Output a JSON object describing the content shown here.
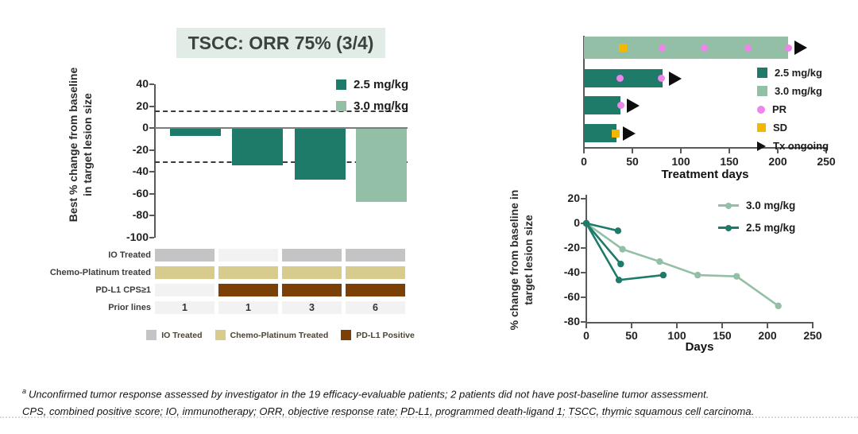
{
  "title": "TSCC: ORR 75% (3/4)",
  "colors": {
    "dark_green": "#1e7a69",
    "light_green": "#92bfa6",
    "pr_pink": "#ee85ea",
    "sd_yellow": "#f5b800",
    "black": "#111111",
    "io_gray": "#c4c4c7",
    "chemo_tan": "#d8cb8e",
    "pdl1_brown": "#7c3f05",
    "cell_empty": "#f2f2f3"
  },
  "chart_data": [
    {
      "id": "waterfall",
      "type": "bar",
      "ylabel": "Best % change from baseline in target lesion size",
      "ylim": [
        -100,
        40
      ],
      "yticks": [
        40,
        20,
        0,
        -20,
        -40,
        -60,
        -80,
        -100
      ],
      "reference_lines_pct": [
        16,
        -30
      ],
      "legend": [
        {
          "label": "2.5 mg/kg",
          "color": "dark_green"
        },
        {
          "label": "3.0 mg/kg",
          "color": "light_green"
        }
      ],
      "bars": [
        {
          "patient": 1,
          "dose": "2.5 mg/kg",
          "color": "dark_green",
          "value": -7
        },
        {
          "patient": 2,
          "dose": "2.5 mg/kg",
          "color": "dark_green",
          "value": -34
        },
        {
          "patient": 3,
          "dose": "2.5 mg/kg",
          "color": "dark_green",
          "value": -47
        },
        {
          "patient": 4,
          "dose": "3.0 mg/kg",
          "color": "light_green",
          "value": -67
        }
      ]
    },
    {
      "id": "swimmer",
      "type": "bar",
      "xlabel": "Treatment days",
      "xlim": [
        0,
        250
      ],
      "xticks": [
        0,
        50,
        100,
        150,
        200,
        250
      ],
      "bars": [
        {
          "dose": "3.0 mg/kg",
          "color": "light_green",
          "days": 211,
          "ongoing": true,
          "markers": [
            {
              "type": "SD",
              "day": 40
            },
            {
              "type": "PR",
              "day": 81
            },
            {
              "type": "PR",
              "day": 124
            },
            {
              "type": "PR",
              "day": 169
            },
            {
              "type": "PR",
              "day": 211
            }
          ]
        },
        {
          "dose": "2.5 mg/kg",
          "color": "dark_green",
          "days": 81,
          "ongoing": true,
          "markers": [
            {
              "type": "PR",
              "day": 37
            },
            {
              "type": "PR",
              "day": 80
            }
          ]
        },
        {
          "dose": "2.5 mg/kg",
          "color": "dark_green",
          "days": 38,
          "ongoing": true,
          "markers": [
            {
              "type": "PR",
              "day": 38
            }
          ]
        },
        {
          "dose": "2.5 mg/kg",
          "color": "dark_green",
          "days": 34,
          "ongoing": true,
          "markers": [
            {
              "type": "SD",
              "day": 33
            }
          ]
        }
      ],
      "legend": [
        {
          "label": "2.5 mg/kg",
          "swatch": "square",
          "color": "dark_green"
        },
        {
          "label": "3.0 mg/kg",
          "swatch": "square",
          "color": "light_green"
        },
        {
          "label": "PR",
          "swatch": "circle",
          "color": "pr_pink"
        },
        {
          "label": "SD",
          "swatch": "square_small",
          "color": "sd_yellow"
        },
        {
          "label": "Tx ongoing",
          "swatch": "triangle",
          "color": "black"
        }
      ]
    },
    {
      "id": "spider",
      "type": "line",
      "xlabel": "Days",
      "ylabel": "% change from baseline in target lesion size",
      "xlim": [
        0,
        250
      ],
      "ylim": [
        -80,
        20
      ],
      "xticks": [
        0,
        50,
        100,
        150,
        200,
        250
      ],
      "yticks": [
        20,
        0,
        -20,
        -40,
        -60,
        -80
      ],
      "series": [
        {
          "name": "3.0 mg/kg",
          "color": "light_green",
          "points": [
            [
              0,
              0
            ],
            [
              40,
              -21
            ],
            [
              81,
              -31
            ],
            [
              123,
              -42
            ],
            [
              166,
              -43
            ],
            [
              212,
              -67
            ]
          ]
        },
        {
          "name": "2.5 mg/kg",
          "color": "dark_green",
          "points": [
            [
              0,
              0
            ],
            [
              35,
              -6
            ]
          ]
        },
        {
          "name": "2.5 mg/kg",
          "color": "dark_green",
          "points": [
            [
              0,
              0
            ],
            [
              38,
              -33
            ]
          ]
        },
        {
          "name": "2.5 mg/kg",
          "color": "dark_green",
          "points": [
            [
              0,
              0
            ],
            [
              36,
              -46
            ],
            [
              85,
              -42
            ]
          ]
        }
      ],
      "legend": [
        {
          "label": "3.0 mg/kg",
          "color": "light_green"
        },
        {
          "label": "2.5 mg/kg",
          "color": "dark_green"
        }
      ]
    }
  ],
  "patient_table": {
    "rows": [
      {
        "label": "IO Treated",
        "type": "flag",
        "color": "io_gray",
        "values": [
          1,
          0,
          1,
          1
        ]
      },
      {
        "label": "Chemo-Platinum treated",
        "type": "flag",
        "color": "chemo_tan",
        "values": [
          1,
          1,
          1,
          1
        ]
      },
      {
        "label": "PD-L1 CPS≥1",
        "type": "flag",
        "color": "pdl1_brown",
        "values": [
          0,
          1,
          1,
          1
        ]
      },
      {
        "label": "Prior lines",
        "type": "number",
        "values": [
          "1",
          "1",
          "3",
          "6"
        ]
      }
    ],
    "legend": [
      {
        "label": "IO Treated",
        "color": "io_gray"
      },
      {
        "label": "Chemo-Platinum Treated",
        "color": "chemo_tan"
      },
      {
        "label": "PD-L1 Positive",
        "color": "pdl1_brown"
      }
    ]
  },
  "footnotes": {
    "marker": "a",
    "line1": "Unconfirmed tumor response assessed by investigator in the 19 efficacy-evaluable patients; 2 patients did not have post-baseline tumor assessment.",
    "line2": "CPS, combined positive score; IO, immunotherapy; ORR, objective response rate; PD-L1, programmed death-ligand 1; TSCC, thymic squamous cell carcinoma."
  }
}
